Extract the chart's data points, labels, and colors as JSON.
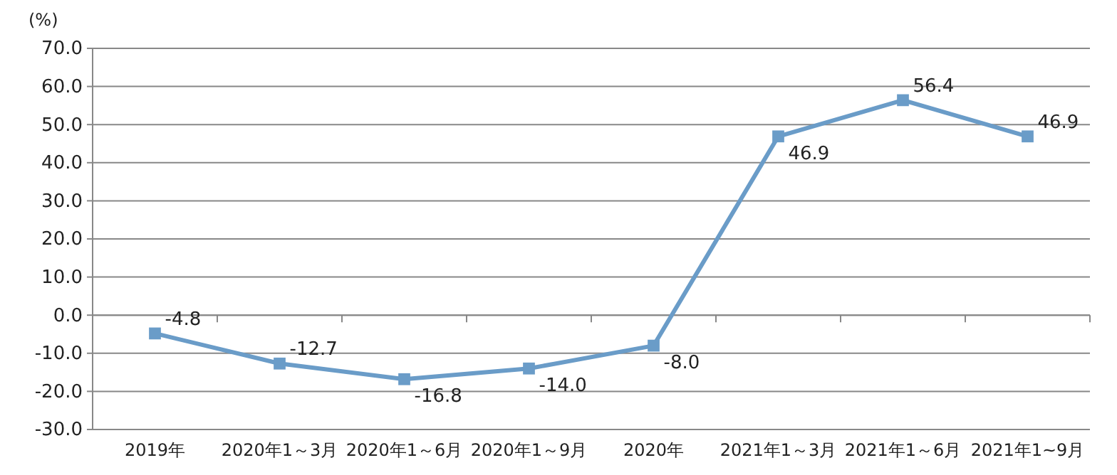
{
  "chart_data": {
    "type": "line",
    "ylabel": "(%)",
    "categories": [
      "2019年",
      "2020年1～3月",
      "2020年1～6月",
      "2020年1～9月",
      "2020年",
      "2021年1～3月",
      "2021年1～6月",
      "2021年1~9月"
    ],
    "series": [
      {
        "color": "#6a9cc8",
        "values": [
          -4.8,
          -12.7,
          -16.8,
          -14.0,
          -8.0,
          46.9,
          56.4,
          46.9
        ],
        "value_labels": [
          "-4.8",
          "-12.7",
          "-16.8",
          "-14.0",
          "-8.0",
          "46.9",
          "56.4",
          "46.9"
        ]
      }
    ],
    "ylim": [
      -30,
      70
    ],
    "yticks": [
      {
        "value": -30,
        "label": "-30.0"
      },
      {
        "value": -20,
        "label": "-20.0"
      },
      {
        "value": -10,
        "label": "-10.0"
      },
      {
        "value": 0,
        "label": "0.0"
      },
      {
        "value": 10,
        "label": "10.0"
      },
      {
        "value": 20,
        "label": "20.0"
      },
      {
        "value": 30,
        "label": "30.0"
      },
      {
        "value": 40,
        "label": "40.0"
      },
      {
        "value": 50,
        "label": "50.0"
      },
      {
        "value": 60,
        "label": "60.0"
      },
      {
        "value": 70,
        "label": "70.0"
      }
    ],
    "grid": "y",
    "marker": "square"
  }
}
